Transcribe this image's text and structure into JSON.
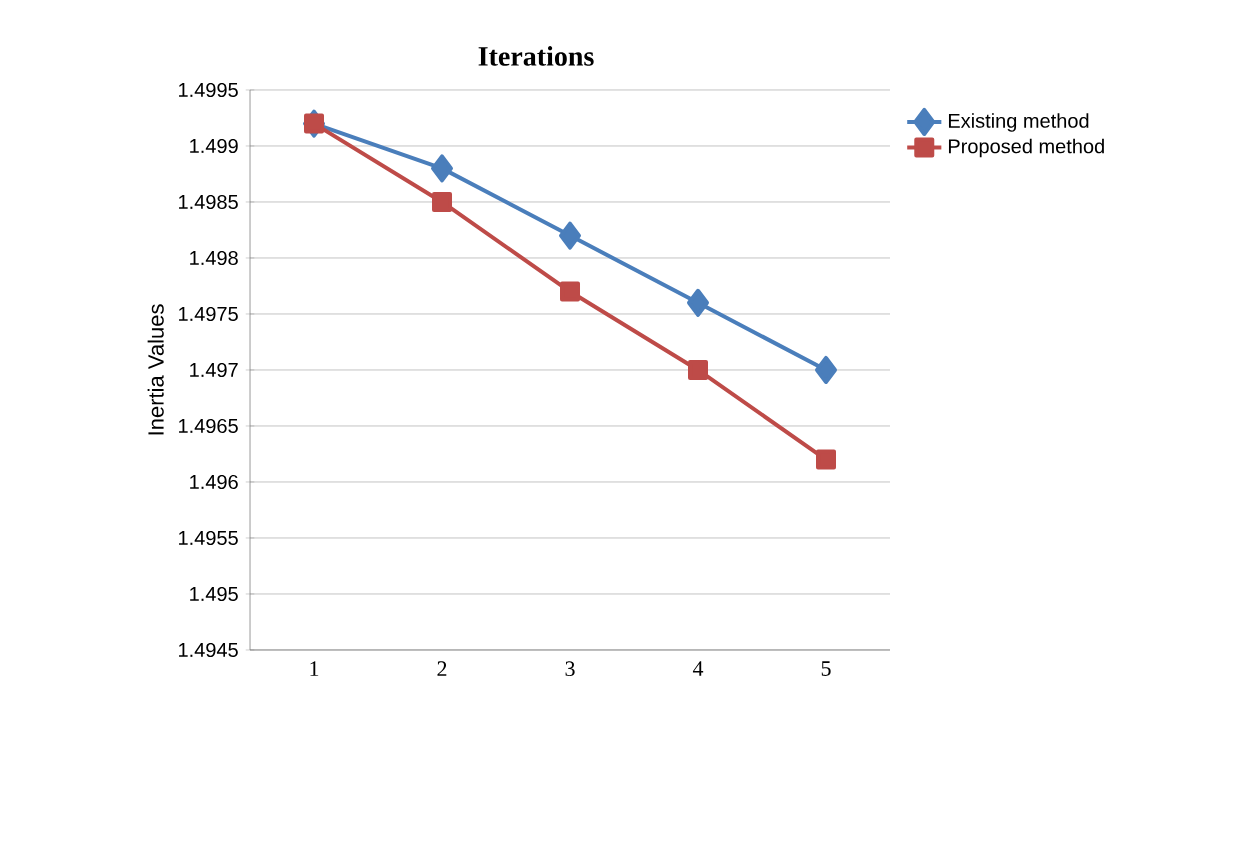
{
  "chart_data": {
    "type": "line",
    "title": "Iterations",
    "ylabel": "Inertia Values",
    "categories": [
      "1",
      "2",
      "3",
      "4",
      "5"
    ],
    "series": [
      {
        "name": "Existing method",
        "color": "#4a7ebb",
        "marker": "diamond",
        "values": [
          1.4992,
          1.4988,
          1.4982,
          1.4976,
          1.497
        ]
      },
      {
        "name": "Proposed method",
        "color": "#be4b48",
        "marker": "square",
        "values": [
          1.4992,
          1.4985,
          1.4977,
          1.497,
          1.4962
        ]
      }
    ],
    "ylim": [
      1.4945,
      1.4995
    ],
    "yticks": [
      1.4945,
      1.495,
      1.4955,
      1.496,
      1.4965,
      1.497,
      1.4975,
      1.498,
      1.4985,
      1.499,
      1.4995
    ],
    "grid": "y",
    "legend": "right",
    "line_style": "solid"
  }
}
